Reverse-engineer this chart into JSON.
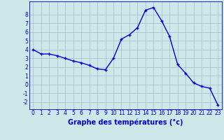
{
  "hours": [
    0,
    1,
    2,
    3,
    4,
    5,
    6,
    7,
    8,
    9,
    10,
    11,
    12,
    13,
    14,
    15,
    16,
    17,
    18,
    19,
    20,
    21,
    22,
    23
  ],
  "temps": [
    4.0,
    3.5,
    3.5,
    3.3,
    3.0,
    2.7,
    2.5,
    2.2,
    1.8,
    1.7,
    3.0,
    5.2,
    5.7,
    6.5,
    8.5,
    8.8,
    7.3,
    5.5,
    2.3,
    1.3,
    0.2,
    -0.2,
    -0.4,
    -2.3
  ],
  "line_color": "#0000cc",
  "marker": "+",
  "bg_color": "#cce8e8",
  "grid_color_major": "#aabbcc",
  "grid_color_minor": "#ccdde0",
  "xlabel": "Graphe des températures (°c)",
  "xlabel_color": "#0000cc",
  "ylim": [
    -2.8,
    9.5
  ],
  "xlim": [
    -0.5,
    23.5
  ],
  "yticks": [
    -2,
    -1,
    0,
    1,
    2,
    3,
    4,
    5,
    6,
    7,
    8
  ],
  "xticks": [
    0,
    1,
    2,
    3,
    4,
    5,
    6,
    7,
    8,
    9,
    10,
    11,
    12,
    13,
    14,
    15,
    16,
    17,
    18,
    19,
    20,
    21,
    22,
    23
  ],
  "tick_fontsize": 5.5,
  "xlabel_fontsize": 7.0,
  "marker_size": 3.5,
  "line_width": 1.0
}
